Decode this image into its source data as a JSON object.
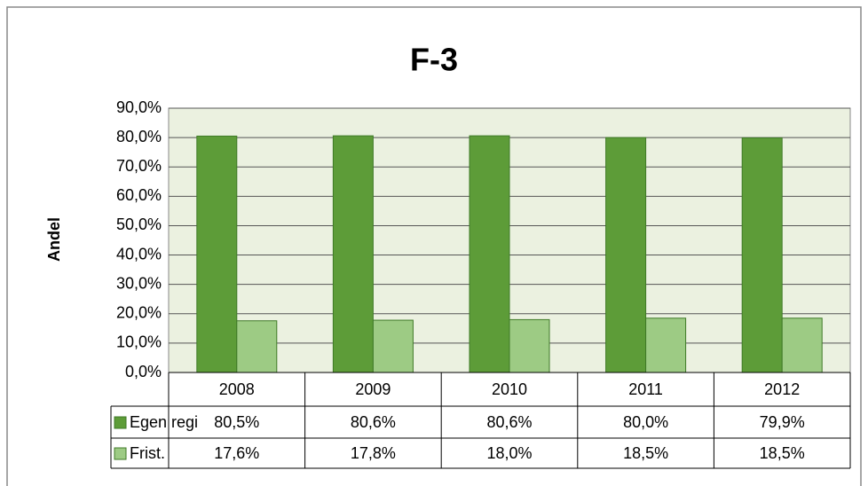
{
  "chart_data": {
    "type": "bar",
    "title": "F-3",
    "y_label": "Andel",
    "categories": [
      "2008",
      "2009",
      "2010",
      "2011",
      "2012"
    ],
    "series": [
      {
        "name": "Egen regi",
        "color": "#5d9c38",
        "values": [
          80.5,
          80.6,
          80.6,
          80.0,
          79.9
        ],
        "value_labels": [
          "80,5%",
          "80,6%",
          "80,6%",
          "80,0%",
          "79,9%"
        ]
      },
      {
        "name": "Frist.",
        "color": "#9dcb84",
        "values": [
          17.6,
          17.8,
          18.0,
          18.5,
          18.5
        ],
        "value_labels": [
          "17,6%",
          "17,8%",
          "18,0%",
          "18,5%",
          "18,5%"
        ]
      }
    ],
    "ylim": [
      0,
      90
    ],
    "yticks": [
      {
        "value": 0,
        "label": "0,0%"
      },
      {
        "value": 10,
        "label": "10,0%"
      },
      {
        "value": 20,
        "label": "20,0%"
      },
      {
        "value": 30,
        "label": "30,0%"
      },
      {
        "value": 40,
        "label": "40,0%"
      },
      {
        "value": 50,
        "label": "50,0%"
      },
      {
        "value": 60,
        "label": "60,0%"
      },
      {
        "value": 70,
        "label": "70,0%"
      },
      {
        "value": 80,
        "label": "80,0%"
      },
      {
        "value": 90,
        "label": "90,0%"
      }
    ],
    "grid": true,
    "plot_background": "#ebf1e0"
  }
}
